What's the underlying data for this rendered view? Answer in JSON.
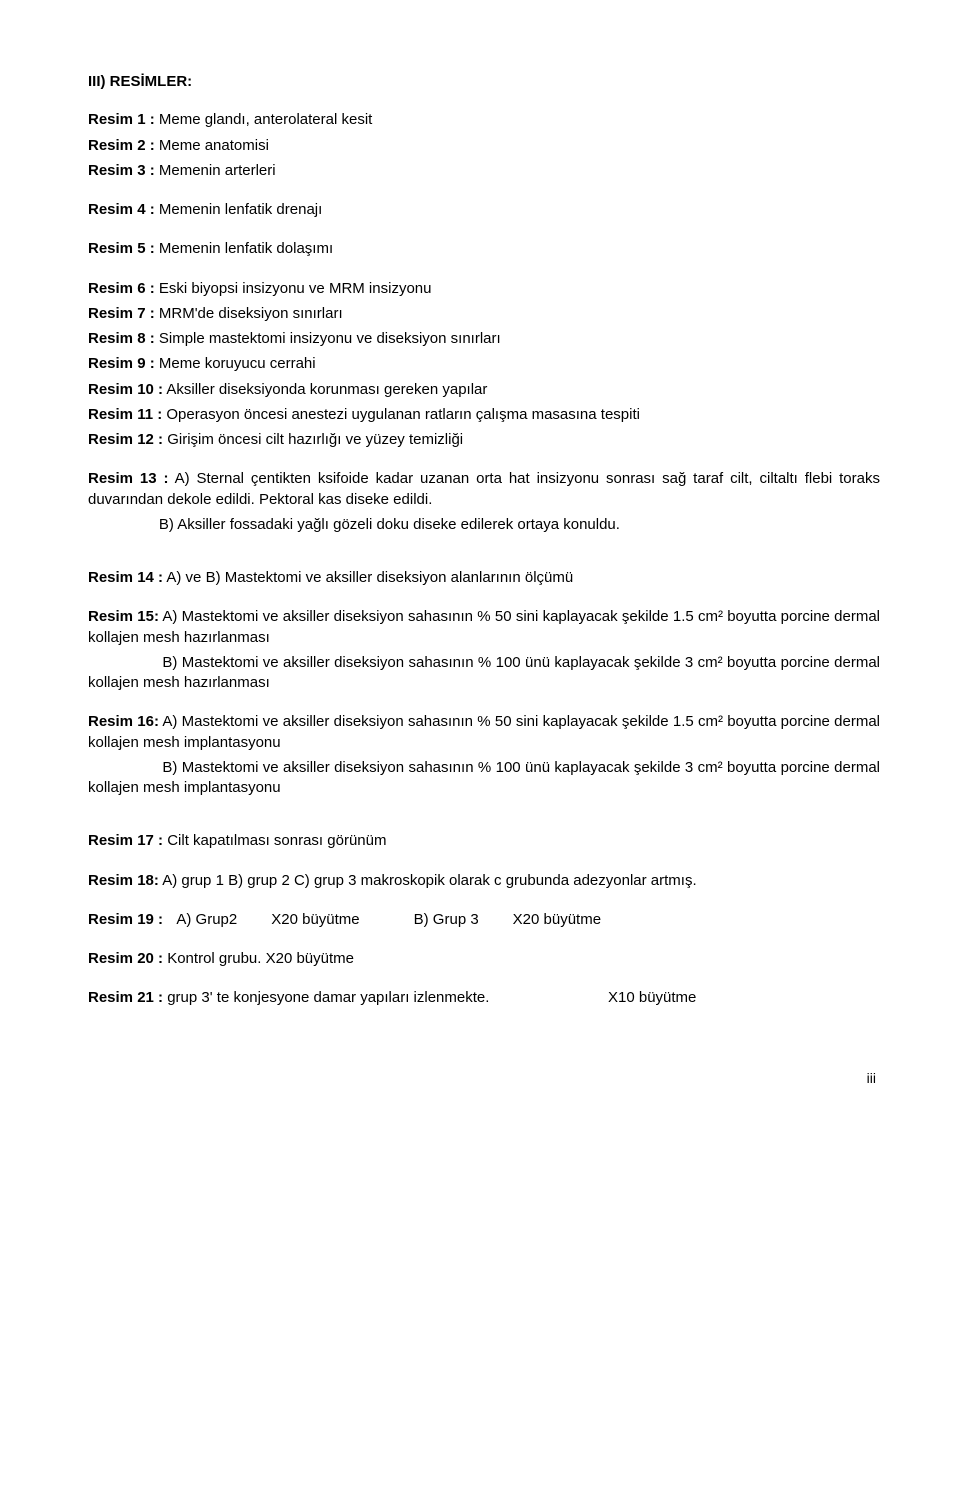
{
  "title": "III) RESİMLER:",
  "items": [
    {
      "label": "Resim 1  :",
      "text": " Meme glandı, anterolateral kesit"
    },
    {
      "label": "Resim 2  :",
      "text": " Meme anatomisi"
    },
    {
      "label": "Resim 3  :",
      "text": " Memenin arterleri"
    },
    {
      "label": "Resim 4  :",
      "text": " Memenin lenfatik drenajı"
    },
    {
      "label": "Resim 5  :",
      "text": " Memenin lenfatik dolaşımı"
    },
    {
      "label": "Resim 6  :",
      "text": " Eski biyopsi insizyonu ve MRM insizyonu"
    },
    {
      "label": "Resim 7  :",
      "text": " MRM'de diseksiyon sınırları"
    },
    {
      "label": "Resim 8  :",
      "text": " Simple mastektomi insizyonu ve diseksiyon sınırları"
    },
    {
      "label": "Resim 9  :",
      "text": " Meme koruyucu cerrahi"
    },
    {
      "label": "Resim 10 :",
      "text": " Aksiller diseksiyonda korunması gereken yapılar"
    },
    {
      "label": "Resim 11 :",
      "text": " Operasyon öncesi anestezi uygulanan ratların çalışma masasına tespiti"
    },
    {
      "label": "Resim 12 :",
      "text": " Girişim öncesi cilt hazırlığı ve yüzey temizliği"
    }
  ],
  "r13": {
    "label": "Resim 13 :",
    "lineA": " A) Sternal çentikten ksifoide kadar uzanan orta hat insizyonu sonrası sağ taraf cilt, ciltaltı flebi toraks duvarından dekole edildi. Pektoral kas diseke edildi.",
    "lineB": "                 B) Aksiller fossadaki yağlı gözeli doku diseke edilerek ortaya konuldu."
  },
  "r14": {
    "label": "Resim 14 :",
    "text": "  A) ve B) Mastektomi ve aksiller diseksiyon alanlarının ölçümü"
  },
  "r15": {
    "label": "Resim 15:",
    "lineA": " A) Mastektomi ve aksiller diseksiyon sahasının % 50 sini kaplayacak şekilde 1.5 cm² boyutta porcine dermal kollajen mesh hazırlanması",
    "lineB": "                 B) Mastektomi ve aksiller diseksiyon sahasının % 100 ünü kaplayacak şekilde 3 cm² boyutta porcine dermal kollajen mesh hazırlanması"
  },
  "r16": {
    "label": "Resim 16:",
    "lineA": " A) Mastektomi ve aksiller diseksiyon sahasının % 50 sini kaplayacak şekilde 1.5 cm² boyutta porcine dermal kollajen mesh implantasyonu",
    "lineB": "                 B) Mastektomi ve aksiller diseksiyon sahasının % 100 ünü kaplayacak şekilde 3 cm² boyutta porcine dermal kollajen mesh implantasyonu"
  },
  "r17": {
    "label": "Resim 17 :",
    "text": " Cilt kapatılması sonrası görünüm"
  },
  "r18": {
    "label": "Resim 18:",
    "text": "  A) grup 1 B) grup 2 C) grup 3 makroskopik olarak c grubunda adezyonlar artmış."
  },
  "r19": {
    "label": "Resim 19 :",
    "c1": "  A) Grup2",
    "c2": "X20 büyütme",
    "c3": "B) Grup 3",
    "c4": "X20 büyütme"
  },
  "r20": {
    "label": "Resim 20 :",
    "text": " Kontrol grubu. X20 büyütme"
  },
  "r21": {
    "label": "Resim 21 :",
    "c1": " grup 3' te konjesyone damar yapıları izlenmekte.",
    "c2": "X10 büyütme"
  },
  "pageNum": "iii"
}
